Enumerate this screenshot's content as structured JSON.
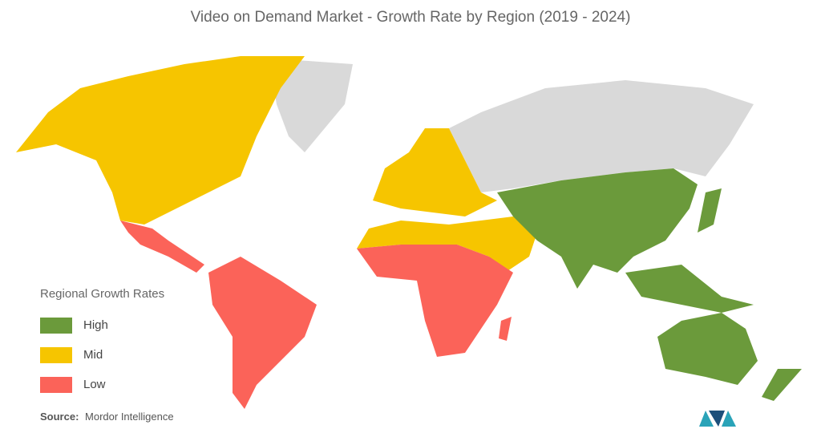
{
  "header": {
    "title": "Video on Demand Market  - Growth Rate by Region (2019 - 2024)"
  },
  "legend": {
    "title": "Regional Growth Rates",
    "items": [
      {
        "label": "High",
        "color": "#6b9a3b"
      },
      {
        "label": "Mid",
        "color": "#f6c500"
      },
      {
        "label": "Low",
        "color": "#fb6359"
      }
    ]
  },
  "source": {
    "label": "Source:",
    "text": "Mordor Intelligence"
  }
}
